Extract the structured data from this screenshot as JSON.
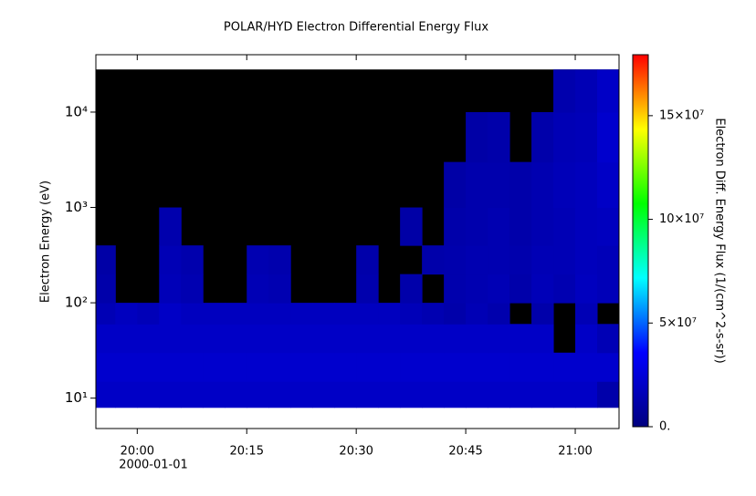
{
  "chart_data": {
    "type": "heatmap",
    "title": "POLAR/HYD  Electron Differential Energy Flux",
    "y_label": "Electron Energy (eV)",
    "colorbar_label": "Electron Diff. Energy Flux (1/(cm^2-s-sr))",
    "x_date_label": "2000-01-01",
    "log_y": true,
    "xlim": [
      "2000-01-01T19:54:20",
      "2000-01-01T21:06:00"
    ],
    "xticks": [
      {
        "value": "2000-01-01T20:00:00",
        "label": "20:00"
      },
      {
        "value": "2000-01-01T20:15:00",
        "label": "20:15"
      },
      {
        "value": "2000-01-01T20:30:00",
        "label": "20:30"
      },
      {
        "value": "2000-01-01T20:45:00",
        "label": "20:45"
      },
      {
        "value": "2000-01-01T21:00:00",
        "label": "21:00"
      }
    ],
    "ylim": [
      4.8,
      40000
    ],
    "yticks": [
      {
        "value": 10,
        "label": "10¹"
      },
      {
        "value": 100,
        "label": "10²"
      },
      {
        "value": 1000,
        "label": "10³"
      },
      {
        "value": 10000,
        "label": "10⁴"
      }
    ],
    "zlim": [
      0,
      179400000
    ],
    "zticks": [
      {
        "value": 0,
        "label": "0."
      },
      {
        "value": 50000000,
        "label": "5×10⁷"
      },
      {
        "value": 100000000,
        "label": "10×10⁷"
      },
      {
        "value": 150000000,
        "label": "15×10⁷"
      }
    ],
    "colors": [
      "#00007f",
      "#0000ff",
      "#00ffff",
      "#00ff00",
      "#ffff00",
      "#ff0000"
    ],
    "background": "#000000",
    "x_edges": [
      "2000-01-01T19:54:20",
      "2000-01-01T19:57:00",
      "2000-01-01T20:00:00",
      "2000-01-01T20:03:00",
      "2000-01-01T20:06:00",
      "2000-01-01T20:09:00",
      "2000-01-01T20:12:00",
      "2000-01-01T20:15:00",
      "2000-01-01T20:18:00",
      "2000-01-01T20:21:00",
      "2000-01-01T20:24:00",
      "2000-01-01T20:27:00",
      "2000-01-01T20:30:00",
      "2000-01-01T20:33:00",
      "2000-01-01T20:36:00",
      "2000-01-01T20:39:00",
      "2000-01-01T20:42:00",
      "2000-01-01T20:45:00",
      "2000-01-01T20:48:00",
      "2000-01-01T20:51:00",
      "2000-01-01T20:54:00",
      "2000-01-01T20:57:00",
      "2000-01-01T21:00:00",
      "2000-01-01T21:03:00",
      "2000-01-01T21:06:00"
    ],
    "y_edges": [
      8,
      15,
      30,
      60,
      100,
      200,
      400,
      1000,
      3000,
      10000,
      28000
    ],
    "z": [
      [
        20000000.0,
        20000000.0,
        20000000.0,
        20000000.0,
        20000000.0,
        20000000.0,
        20000000.0,
        20000000.0,
        20000000.0,
        20000000.0,
        20000000.0,
        20000000.0,
        20000000.0,
        20000000.0,
        20000000.0,
        20000000.0,
        20000000.0,
        20000000.0,
        20000000.0,
        20000000.0,
        20000000.0,
        20000000.0,
        20000000.0,
        12000000.0
      ],
      [
        22000000.0,
        22000000.0,
        22000000.0,
        22000000.0,
        22000000.0,
        22000000.0,
        22000000.0,
        22000000.0,
        22000000.0,
        22000000.0,
        22000000.0,
        22000000.0,
        22000000.0,
        22000000.0,
        22000000.0,
        22000000.0,
        22000000.0,
        22000000.0,
        22000000.0,
        22000000.0,
        22000000.0,
        22000000.0,
        22000000.0,
        22000000.0
      ],
      [
        20000000.0,
        20000000.0,
        20000000.0,
        20000000.0,
        20000000.0,
        20000000.0,
        20000000.0,
        20000000.0,
        20000000.0,
        20000000.0,
        20000000.0,
        20000000.0,
        20000000.0,
        20000000.0,
        20000000.0,
        20000000.0,
        20000000.0,
        20000000.0,
        20000000.0,
        20000000.0,
        20000000.0,
        null,
        20000000.0,
        15000000.0
      ],
      [
        15000000.0,
        18000000.0,
        16000000.0,
        20000000.0,
        18000000.0,
        18000000.0,
        18000000.0,
        18000000.0,
        18000000.0,
        18000000.0,
        18000000.0,
        18000000.0,
        18000000.0,
        18000000.0,
        16000000.0,
        14000000.0,
        12000000.0,
        15000000.0,
        13000000.0,
        null,
        12000000.0,
        null,
        15000000.0,
        null
      ],
      [
        12000000.0,
        null,
        null,
        16000000.0,
        14000000.0,
        null,
        null,
        15000000.0,
        14000000.0,
        null,
        null,
        null,
        13000000.0,
        null,
        12000000.0,
        null,
        13000000.0,
        14000000.0,
        15000000.0,
        12000000.0,
        16000000.0,
        14000000.0,
        18000000.0,
        16000000.0
      ],
      [
        11000000.0,
        null,
        null,
        15000000.0,
        13000000.0,
        null,
        null,
        14000000.0,
        13000000.0,
        null,
        null,
        null,
        12000000.0,
        null,
        null,
        12000000.0,
        13000000.0,
        14000000.0,
        14000000.0,
        13000000.0,
        15000000.0,
        15000000.0,
        17000000.0,
        16000000.0
      ],
      [
        null,
        null,
        null,
        13000000.0,
        null,
        null,
        null,
        null,
        null,
        null,
        null,
        null,
        null,
        null,
        11000000.0,
        null,
        12000000.0,
        13000000.0,
        14000000.0,
        12000000.0,
        14000000.0,
        15000000.0,
        17000000.0,
        18000000.0
      ],
      [
        null,
        null,
        null,
        null,
        null,
        null,
        null,
        null,
        null,
        null,
        null,
        null,
        null,
        null,
        null,
        null,
        11000000.0,
        13000000.0,
        13000000.0,
        12000000.0,
        14000000.0,
        16000000.0,
        17000000.0,
        20000000.0
      ],
      [
        null,
        null,
        null,
        null,
        null,
        null,
        null,
        null,
        null,
        null,
        null,
        null,
        null,
        null,
        null,
        null,
        null,
        11000000.0,
        12000000.0,
        null,
        12000000.0,
        15000000.0,
        16000000.0,
        22000000.0
      ],
      [
        null,
        null,
        null,
        null,
        null,
        null,
        null,
        null,
        null,
        null,
        null,
        null,
        null,
        null,
        null,
        null,
        null,
        null,
        null,
        null,
        null,
        13000000.0,
        15000000.0,
        20000000.0
      ]
    ]
  }
}
